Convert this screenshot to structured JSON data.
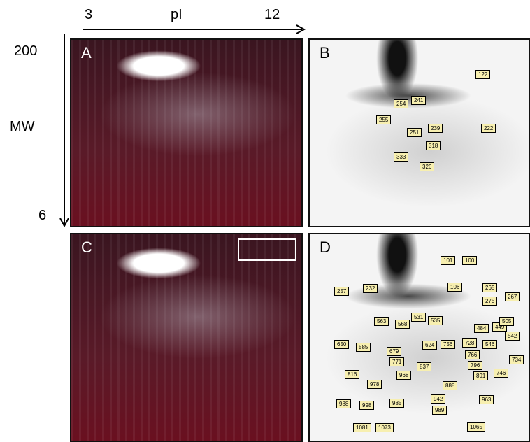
{
  "axes": {
    "x_start": "3",
    "x_label": "pI",
    "x_end": "12",
    "y_top": "200",
    "y_label": "MW",
    "y_bottom": "6"
  },
  "panels": [
    {
      "letter": "A"
    },
    {
      "letter": "B",
      "spots": [
        "122",
        "254",
        "241",
        "255",
        "251",
        "239",
        "222",
        "333",
        "318",
        "326"
      ]
    },
    {
      "letter": "C"
    },
    {
      "letter": "D",
      "spots": [
        "101",
        "100",
        "257",
        "232",
        "106",
        "265",
        "267",
        "275",
        "563",
        "568",
        "531",
        "535",
        "484",
        "449",
        "505",
        "542",
        "650",
        "585",
        "679",
        "624",
        "756",
        "728",
        "546",
        "771",
        "766",
        "734",
        "816",
        "968",
        "837",
        "796",
        "891",
        "746",
        "978",
        "888",
        "988",
        "998",
        "985",
        "942",
        "963",
        "989",
        "1081",
        "1073",
        "1065"
      ]
    }
  ]
}
